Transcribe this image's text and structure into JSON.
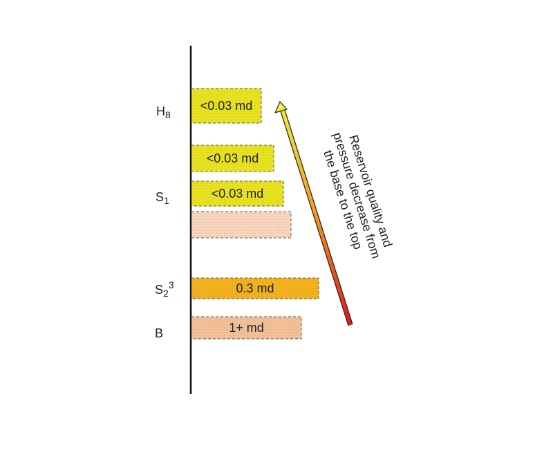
{
  "layers": [
    {
      "base": "H",
      "sub": "8"
    },
    {
      "base": "S",
      "sub": "1"
    },
    {
      "base": "S",
      "sub": "2",
      "sup": "3"
    },
    {
      "base": "B"
    }
  ],
  "boxes": [
    {
      "label": "<0.03 md",
      "color": "#e9e31f"
    },
    {
      "label": "<0.03 md",
      "color": "#e9e31f"
    },
    {
      "label": "<0.03 md",
      "color": "#e9e31f"
    },
    {
      "color": "#f8d6bd"
    },
    {
      "label": "0.3 md",
      "color": "#f4b21e"
    },
    {
      "label": "1+ md",
      "color": "#f4c098"
    }
  ],
  "annotation": {
    "lines": [
      "Reservoir quality and",
      "pressure decrease from",
      "the base to the top"
    ]
  }
}
